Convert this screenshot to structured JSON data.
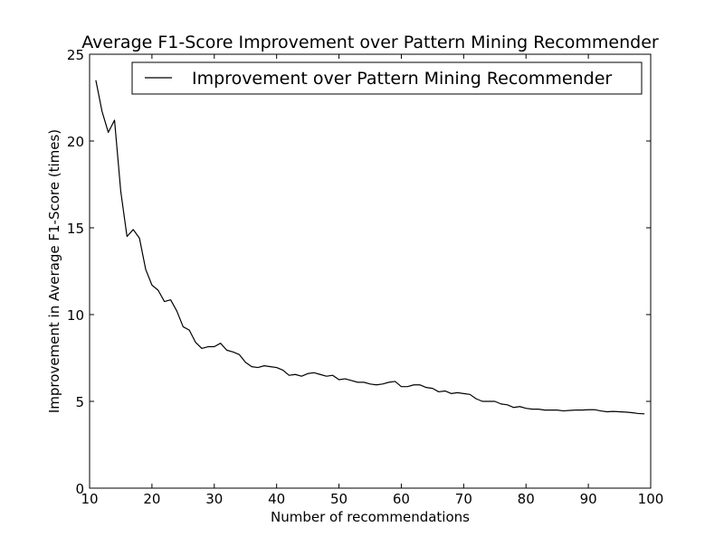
{
  "chart_data": {
    "type": "line",
    "title": "Average F1-Score Improvement over Pattern Mining Recommender",
    "xlabel": "Number of recommendations",
    "ylabel": "Improvement in Average F1-Score (times)",
    "xlim": [
      10,
      100
    ],
    "ylim": [
      0,
      25
    ],
    "xticks": [
      10,
      20,
      30,
      40,
      50,
      60,
      70,
      80,
      90,
      100
    ],
    "yticks": [
      0,
      5,
      10,
      15,
      20,
      25
    ],
    "grid": false,
    "legend_position": "top-right",
    "series": [
      {
        "name": "Improvement over Pattern Mining Recommender",
        "color": "#000000",
        "x": [
          11,
          12,
          13,
          14,
          15,
          16,
          17,
          18,
          19,
          20,
          21,
          22,
          23,
          24,
          25,
          26,
          27,
          28,
          29,
          30,
          31,
          32,
          33,
          34,
          35,
          36,
          37,
          38,
          39,
          40,
          41,
          42,
          43,
          44,
          45,
          46,
          47,
          48,
          49,
          50,
          51,
          52,
          53,
          54,
          55,
          56,
          57,
          58,
          59,
          60,
          61,
          62,
          63,
          64,
          65,
          66,
          67,
          68,
          69,
          70,
          71,
          72,
          73,
          74,
          75,
          76,
          77,
          78,
          79,
          80,
          81,
          82,
          83,
          84,
          85,
          86,
          87,
          88,
          89,
          90,
          91,
          92,
          93,
          94,
          95,
          96,
          97,
          98,
          99
        ],
        "values": [
          23.5,
          21.7,
          20.5,
          21.2,
          17.1,
          14.5,
          14.9,
          14.4,
          12.6,
          11.7,
          11.4,
          10.75,
          10.85,
          10.2,
          9.3,
          9.1,
          8.4,
          8.05,
          8.15,
          8.15,
          8.35,
          7.95,
          7.85,
          7.7,
          7.25,
          7.0,
          6.95,
          7.05,
          7.0,
          6.95,
          6.8,
          6.5,
          6.55,
          6.45,
          6.6,
          6.65,
          6.55,
          6.45,
          6.5,
          6.25,
          6.3,
          6.2,
          6.1,
          6.1,
          6.0,
          5.95,
          6.0,
          6.1,
          6.15,
          5.85,
          5.85,
          5.95,
          5.95,
          5.8,
          5.75,
          5.55,
          5.6,
          5.45,
          5.5,
          5.45,
          5.4,
          5.15,
          5.0,
          5.0,
          5.0,
          4.85,
          4.8,
          4.65,
          4.7,
          4.6,
          4.55,
          4.55,
          4.5,
          4.5,
          4.5,
          4.45,
          4.48,
          4.5,
          4.5,
          4.52,
          4.52,
          4.45,
          4.4,
          4.42,
          4.4,
          4.38,
          4.35,
          4.3,
          4.28
        ]
      }
    ]
  }
}
